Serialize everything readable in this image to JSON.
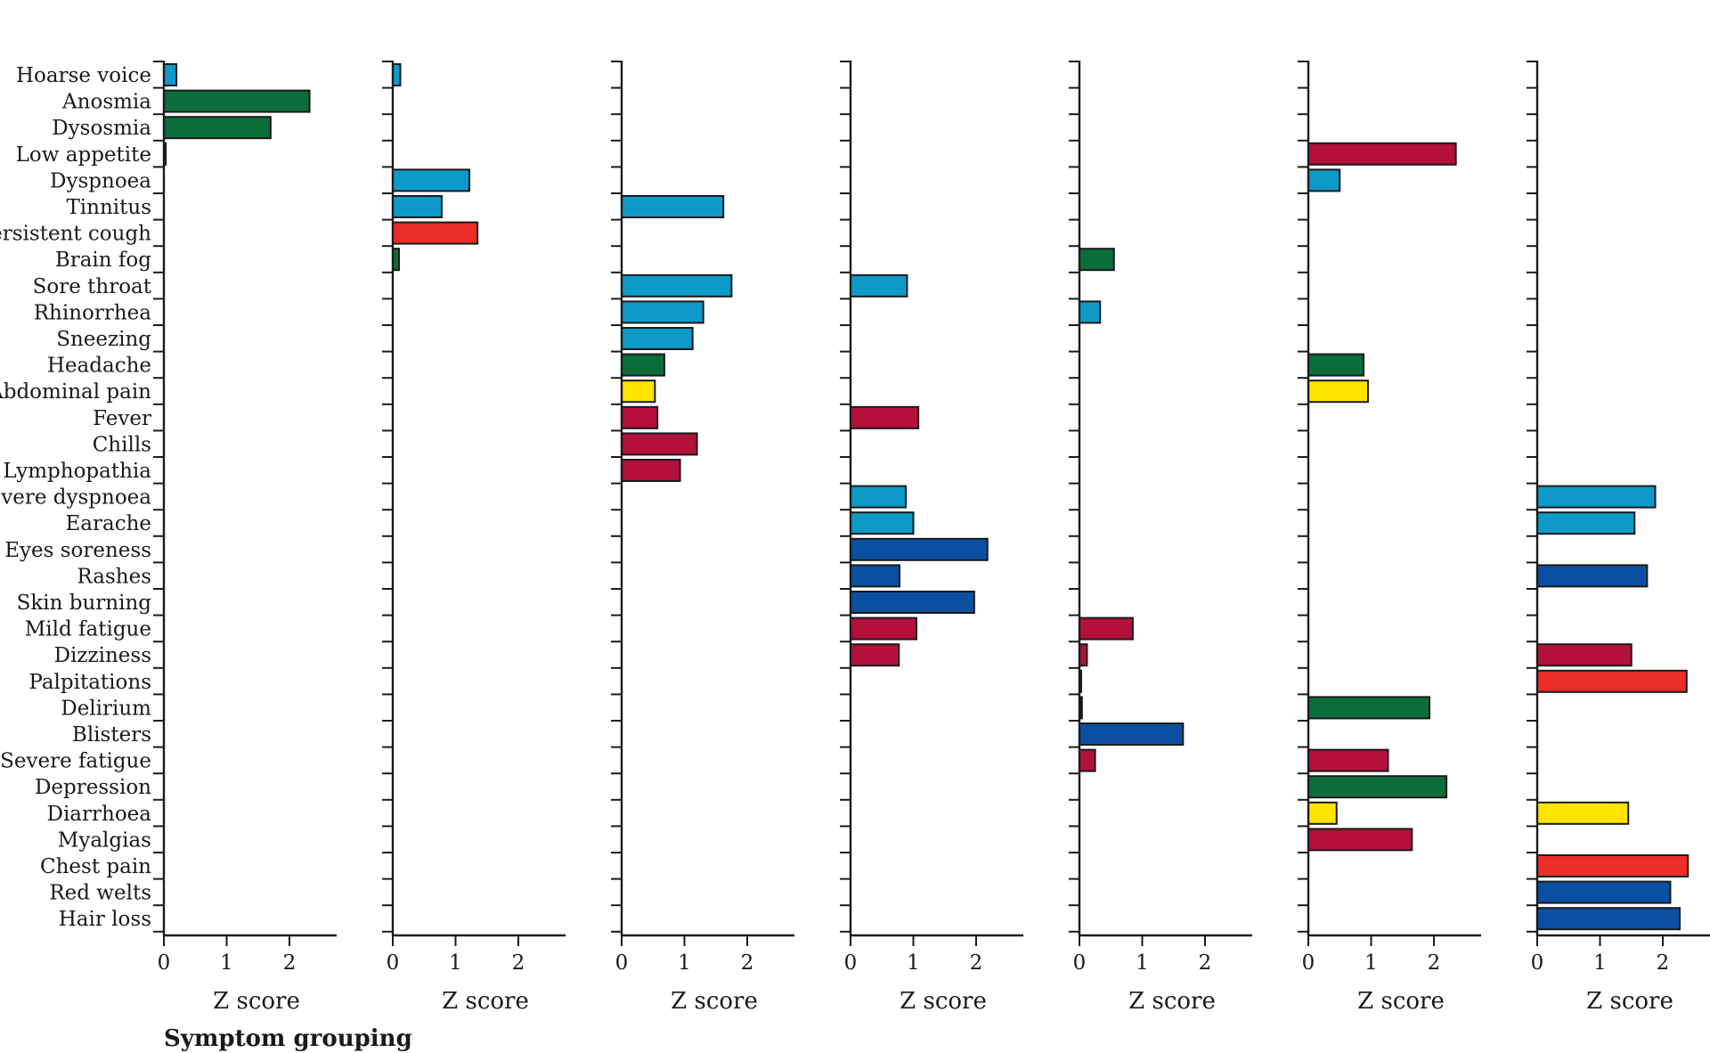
{
  "footnote": "Symptom grouping",
  "chart_data": {
    "type": "bar",
    "orientation": "horizontal",
    "categories": [
      "Hoarse voice",
      "Anosmia",
      "Dysosmia",
      "Low appetite",
      "Dyspnoea",
      "Tinnitus",
      "Persistent cough",
      "Brain fog",
      "Sore throat",
      "Rhinorrhea",
      "Sneezing",
      "Headache",
      "Abdominal pain",
      "Fever",
      "Chills",
      "Lymphopathia",
      "Severe dyspnoea",
      "Earache",
      "Eyes soreness",
      "Rashes",
      "Skin burning",
      "Mild fatigue",
      "Dizziness",
      "Palpitations",
      "Delirium",
      "Blisters",
      "Severe fatigue",
      "Depression",
      "Diarrhoea",
      "Myalgias",
      "Chest pain",
      "Red welts",
      "Hair loss"
    ],
    "xlabel": "Z score",
    "xlim": [
      0,
      2.75
    ],
    "xticks": [
      0,
      1,
      2
    ],
    "grid": false,
    "legend": "none",
    "colors": {
      "light_blue": "#0e9ac8",
      "dark_green": "#0b6e3a",
      "red": "#ea2e27",
      "yellow": "#ffe400",
      "crimson": "#b3103c",
      "dark_blue": "#0b4fa0",
      "black": "#111111"
    },
    "panels": [
      {
        "bars": [
          {
            "category": "Hoarse voice",
            "value": 0.2,
            "color": "light_blue"
          },
          {
            "category": "Anosmia",
            "value": 2.32,
            "color": "dark_green"
          },
          {
            "category": "Dysosmia",
            "value": 1.7,
            "color": "dark_green"
          },
          {
            "category": "Low appetite",
            "value": 0.03,
            "color": "black"
          }
        ]
      },
      {
        "bars": [
          {
            "category": "Hoarse voice",
            "value": 0.12,
            "color": "light_blue"
          },
          {
            "category": "Dyspnoea",
            "value": 1.22,
            "color": "light_blue"
          },
          {
            "category": "Tinnitus",
            "value": 0.78,
            "color": "light_blue"
          },
          {
            "category": "Persistent cough",
            "value": 1.35,
            "color": "red"
          },
          {
            "category": "Brain fog",
            "value": 0.1,
            "color": "dark_green"
          }
        ]
      },
      {
        "bars": [
          {
            "category": "Tinnitus",
            "value": 1.62,
            "color": "light_blue"
          },
          {
            "category": "Sore throat",
            "value": 1.75,
            "color": "light_blue"
          },
          {
            "category": "Rhinorrhea",
            "value": 1.3,
            "color": "light_blue"
          },
          {
            "category": "Sneezing",
            "value": 1.13,
            "color": "light_blue"
          },
          {
            "category": "Headache",
            "value": 0.68,
            "color": "dark_green"
          },
          {
            "category": "Abdominal pain",
            "value": 0.53,
            "color": "yellow"
          },
          {
            "category": "Fever",
            "value": 0.57,
            "color": "crimson"
          },
          {
            "category": "Chills",
            "value": 1.2,
            "color": "crimson"
          },
          {
            "category": "Lymphopathia",
            "value": 0.93,
            "color": "crimson"
          }
        ]
      },
      {
        "bars": [
          {
            "category": "Sore throat",
            "value": 0.9,
            "color": "light_blue"
          },
          {
            "category": "Fever",
            "value": 1.08,
            "color": "crimson"
          },
          {
            "category": "Severe dyspnoea",
            "value": 0.88,
            "color": "light_blue"
          },
          {
            "category": "Earache",
            "value": 1.0,
            "color": "light_blue"
          },
          {
            "category": "Eyes soreness",
            "value": 2.18,
            "color": "dark_blue"
          },
          {
            "category": "Rashes",
            "value": 0.78,
            "color": "dark_blue"
          },
          {
            "category": "Skin burning",
            "value": 1.97,
            "color": "dark_blue"
          },
          {
            "category": "Mild fatigue",
            "value": 1.05,
            "color": "crimson"
          },
          {
            "category": "Dizziness",
            "value": 0.77,
            "color": "crimson"
          }
        ]
      },
      {
        "bars": [
          {
            "category": "Brain fog",
            "value": 0.55,
            "color": "dark_green"
          },
          {
            "category": "Rhinorrhea",
            "value": 0.33,
            "color": "light_blue"
          },
          {
            "category": "Mild fatigue",
            "value": 0.85,
            "color": "crimson"
          },
          {
            "category": "Dizziness",
            "value": 0.12,
            "color": "crimson"
          },
          {
            "category": "Palpitations",
            "value": 0.02,
            "color": "black"
          },
          {
            "category": "Delirium",
            "value": 0.04,
            "color": "black"
          },
          {
            "category": "Blisters",
            "value": 1.65,
            "color": "dark_blue"
          },
          {
            "category": "Severe fatigue",
            "value": 0.25,
            "color": "crimson"
          }
        ]
      },
      {
        "bars": [
          {
            "category": "Low appetite",
            "value": 2.35,
            "color": "crimson"
          },
          {
            "category": "Dyspnoea",
            "value": 0.5,
            "color": "light_blue"
          },
          {
            "category": "Headache",
            "value": 0.88,
            "color": "dark_green"
          },
          {
            "category": "Abdominal pain",
            "value": 0.95,
            "color": "yellow"
          },
          {
            "category": "Delirium",
            "value": 1.93,
            "color": "dark_green"
          },
          {
            "category": "Severe fatigue",
            "value": 1.27,
            "color": "crimson"
          },
          {
            "category": "Depression",
            "value": 2.2,
            "color": "dark_green"
          },
          {
            "category": "Diarrhoea",
            "value": 0.45,
            "color": "yellow"
          },
          {
            "category": "Myalgias",
            "value": 1.65,
            "color": "crimson"
          }
        ]
      },
      {
        "bars": [
          {
            "category": "Severe dyspnoea",
            "value": 1.88,
            "color": "light_blue"
          },
          {
            "category": "Earache",
            "value": 1.55,
            "color": "light_blue"
          },
          {
            "category": "Rashes",
            "value": 1.75,
            "color": "dark_blue"
          },
          {
            "category": "Dizziness",
            "value": 1.5,
            "color": "crimson"
          },
          {
            "category": "Palpitations",
            "value": 2.38,
            "color": "red"
          },
          {
            "category": "Diarrhoea",
            "value": 1.45,
            "color": "yellow"
          },
          {
            "category": "Chest pain",
            "value": 2.4,
            "color": "red"
          },
          {
            "category": "Red welts",
            "value": 2.12,
            "color": "dark_blue"
          },
          {
            "category": "Hair loss",
            "value": 2.27,
            "color": "dark_blue"
          }
        ]
      }
    ]
  }
}
